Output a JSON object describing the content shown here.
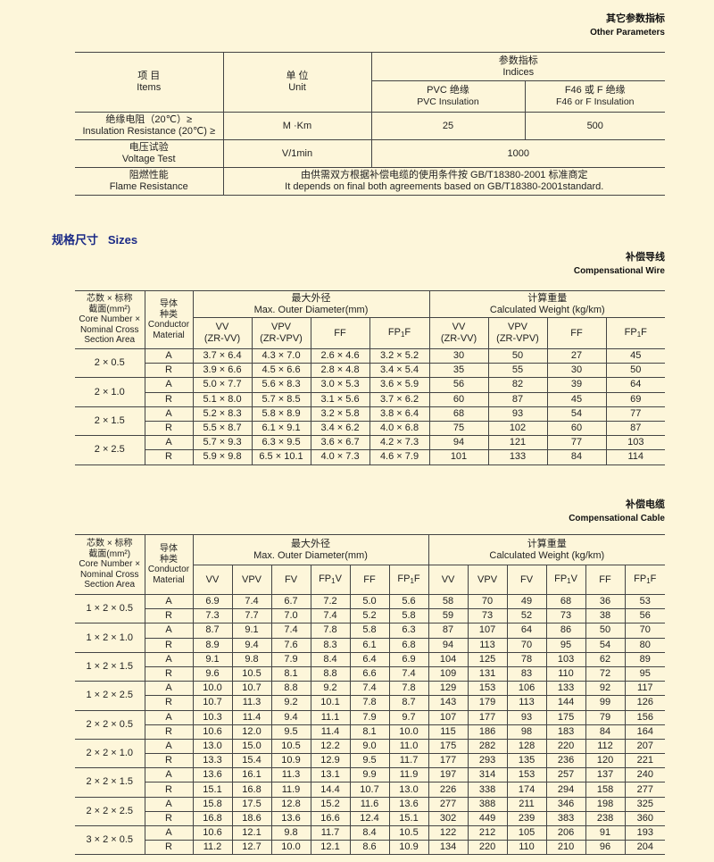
{
  "other": {
    "title": "其它参数指标",
    "subtitle": "Other Parameters",
    "headers": {
      "item": [
        "项 目",
        "Items"
      ],
      "unit": [
        "单 位",
        "Unit"
      ],
      "indices": [
        "参数指标",
        "Indices"
      ],
      "pvc": [
        "PVC 绝缘",
        "PVC Insulation"
      ],
      "f46": [
        "F46 或 F 绝缘",
        "F46 or F Insulation"
      ]
    },
    "rows": [
      {
        "item": [
          "绝缘电阻（20℃）≥",
          "Insulation Resistance (20℃) ≥"
        ],
        "unit": "M ·Km",
        "pvc": "25",
        "f46": "500"
      },
      {
        "item": [
          "电压试验",
          "Voltage Test"
        ],
        "unit": "V/1min",
        "value": "1000"
      },
      {
        "item": [
          "阻燃性能",
          "Flame Resistance"
        ],
        "note": [
          "由供需双方根据补偿电缆的使用条件按 GB/T18380-2001 标准商定",
          "It depends on final both agreements based on GB/T18380-2001standard."
        ]
      }
    ]
  },
  "sizes_heading": {
    "cn": "规格尺寸",
    "en": "Sizes"
  },
  "wire": {
    "title": "补偿导线",
    "subtitle": "Compensational Wire",
    "headers": {
      "spec": [
        "芯数 × 标称",
        "截面(mm²)",
        "Core Number ×",
        "Nominal Cross",
        "Section Area"
      ],
      "material": [
        "导体",
        "种类",
        "Conductor",
        "Material"
      ],
      "diameter": [
        "最大外径",
        "Max. Outer Diameter(mm)"
      ],
      "weight": [
        "计算重量",
        "Calculated Weight  (kg/km)"
      ]
    },
    "columns": [
      [
        "VV",
        "(ZR-VV)"
      ],
      [
        "VPV",
        "(ZR-VPV)"
      ],
      [
        "FF"
      ],
      [
        {
          "main": "FP",
          "sub": "1",
          "end": "F"
        }
      ],
      [
        "VV",
        "(ZR-VV)"
      ],
      [
        "VPV",
        "(ZR-VPV)"
      ],
      [
        "FF"
      ],
      [
        {
          "main": "FP",
          "sub": "1",
          "end": "F"
        }
      ]
    ],
    "rows": [
      {
        "spec": "2 × 0.5",
        "lines": [
          {
            "material": "A",
            "cells": [
              "3.7 × 6.4",
              "4.3 × 7.0",
              "2.6 × 4.6",
              "3.2 × 5.2",
              "30",
              "50",
              "27",
              "45"
            ]
          },
          {
            "material": "R",
            "cells": [
              "3.9 × 6.6",
              "4.5 × 6.6",
              "2.8 × 4.8",
              "3.4 × 5.4",
              "35",
              "55",
              "30",
              "50"
            ]
          }
        ]
      },
      {
        "spec": "2 × 1.0",
        "lines": [
          {
            "material": "A",
            "cells": [
              "5.0 × 7.7",
              "5.6 × 8.3",
              "3.0 × 5.3",
              "3.6 × 5.9",
              "56",
              "82",
              "39",
              "64"
            ]
          },
          {
            "material": "R",
            "cells": [
              "5.1 × 8.0",
              "5.7 × 8.5",
              "3.1 × 5.6",
              "3.7 × 6.2",
              "60",
              "87",
              "45",
              "69"
            ]
          }
        ]
      },
      {
        "spec": "2 × 1.5",
        "lines": [
          {
            "material": "A",
            "cells": [
              "5.2 × 8.3",
              "5.8 × 8.9",
              "3.2 × 5.8",
              "3.8 × 6.4",
              "68",
              "93",
              "54",
              "77"
            ]
          },
          {
            "material": "R",
            "cells": [
              "5.5 × 8.7",
              "6.1 × 9.1",
              "3.4 × 6.2",
              "4.0 × 6.8",
              "75",
              "102",
              "60",
              "87"
            ]
          }
        ]
      },
      {
        "spec": "2 × 2.5",
        "lines": [
          {
            "material": "A",
            "cells": [
              "5.7 × 9.3",
              "6.3 × 9.5",
              "3.6 × 6.7",
              "4.2 × 7.3",
              "94",
              "121",
              "77",
              "103"
            ]
          },
          {
            "material": "R",
            "cells": [
              "5.9 × 9.8",
              "6.5 × 10.1",
              "4.0 × 7.3",
              "4.6 × 7.9",
              "101",
              "133",
              "84",
              "114"
            ]
          }
        ]
      }
    ]
  },
  "cable": {
    "title": "补偿电缆",
    "subtitle": "Compensational Cable",
    "headers": {
      "spec": [
        "芯数 × 标称",
        "截面(mm²)",
        "Core Number ×",
        "Nominal Cross",
        "Section Area"
      ],
      "material": [
        "导体",
        "种类",
        "Conductor",
        "Material"
      ],
      "diameter": [
        "最大外径",
        "Max. Outer Diameter(mm)"
      ],
      "weight": [
        "计算重量",
        "Calculated Weight  (kg/km)"
      ]
    },
    "columns": [
      [
        "VV"
      ],
      [
        "VPV"
      ],
      [
        "FV"
      ],
      [
        {
          "main": "FP",
          "sub": "1",
          "end": "V"
        }
      ],
      [
        "FF"
      ],
      [
        {
          "main": "FP",
          "sub": "1",
          "end": "F"
        }
      ],
      [
        "VV"
      ],
      [
        "VPV"
      ],
      [
        "FV"
      ],
      [
        {
          "main": "FP",
          "sub": "1",
          "end": "V"
        }
      ],
      [
        "FF"
      ],
      [
        {
          "main": "FP",
          "sub": "1",
          "end": "F"
        }
      ]
    ],
    "rows": [
      {
        "spec": "1 × 2 × 0.5",
        "lines": [
          {
            "material": "A",
            "cells": [
              "6.9",
              "7.4",
              "6.7",
              "7.2",
              "5.0",
              "5.6",
              "58",
              "70",
              "49",
              "68",
              "36",
              "53"
            ]
          },
          {
            "material": "R",
            "cells": [
              "7.3",
              "7.7",
              "7.0",
              "7.4",
              "5.2",
              "5.8",
              "59",
              "73",
              "52",
              "73",
              "38",
              "56"
            ]
          }
        ]
      },
      {
        "spec": "1 × 2 × 1.0",
        "lines": [
          {
            "material": "A",
            "cells": [
              "8.7",
              "9.1",
              "7.4",
              "7.8",
              "5.8",
              "6.3",
              "87",
              "107",
              "64",
              "86",
              "50",
              "70"
            ]
          },
          {
            "material": "R",
            "cells": [
              "8.9",
              "9.4",
              "7.6",
              "8.3",
              "6.1",
              "6.8",
              "94",
              "113",
              "70",
              "95",
              "54",
              "80"
            ]
          }
        ]
      },
      {
        "spec": "1 × 2 × 1.5",
        "lines": [
          {
            "material": "A",
            "cells": [
              "9.1",
              "9.8",
              "7.9",
              "8.4",
              "6.4",
              "6.9",
              "104",
              "125",
              "78",
              "103",
              "62",
              "89"
            ]
          },
          {
            "material": "R",
            "cells": [
              "9.6",
              "10.5",
              "8.1",
              "8.8",
              "6.6",
              "7.4",
              "109",
              "131",
              "83",
              "110",
              "72",
              "95"
            ]
          }
        ]
      },
      {
        "spec": "1 × 2 × 2.5",
        "lines": [
          {
            "material": "A",
            "cells": [
              "10.0",
              "10.7",
              "8.8",
              "9.2",
              "7.4",
              "7.8",
              "129",
              "153",
              "106",
              "133",
              "92",
              "117"
            ]
          },
          {
            "material": "R",
            "cells": [
              "10.7",
              "11.3",
              "9.2",
              "10.1",
              "7.8",
              "8.7",
              "143",
              "179",
              "113",
              "144",
              "99",
              "126"
            ]
          }
        ]
      },
      {
        "spec": "2 × 2 × 0.5",
        "lines": [
          {
            "material": "A",
            "cells": [
              "10.3",
              "11.4",
              "9.4",
              "11.1",
              "7.9",
              "9.7",
              "107",
              "177",
              "93",
              "175",
              "79",
              "156"
            ]
          },
          {
            "material": "R",
            "cells": [
              "10.6",
              "12.0",
              "9.5",
              "11.4",
              "8.1",
              "10.0",
              "115",
              "186",
              "98",
              "183",
              "84",
              "164"
            ]
          }
        ]
      },
      {
        "spec": "2 × 2 × 1.0",
        "lines": [
          {
            "material": "A",
            "cells": [
              "13.0",
              "15.0",
              "10.5",
              "12.2",
              "9.0",
              "11.0",
              "175",
              "282",
              "128",
              "220",
              "112",
              "207"
            ]
          },
          {
            "material": "R",
            "cells": [
              "13.3",
              "15.4",
              "10.9",
              "12.9",
              "9.5",
              "11.7",
              "177",
              "293",
              "135",
              "236",
              "120",
              "221"
            ]
          }
        ]
      },
      {
        "spec": "2 × 2 × 1.5",
        "lines": [
          {
            "material": "A",
            "cells": [
              "13.6",
              "16.1",
              "11.3",
              "13.1",
              "9.9",
              "11.9",
              "197",
              "314",
              "153",
              "257",
              "137",
              "240"
            ]
          },
          {
            "material": "R",
            "cells": [
              "15.1",
              "16.8",
              "11.9",
              "14.4",
              "10.7",
              "13.0",
              "226",
              "338",
              "174",
              "294",
              "158",
              "277"
            ]
          }
        ]
      },
      {
        "spec": "2 × 2 × 2.5",
        "lines": [
          {
            "material": "A",
            "cells": [
              "15.8",
              "17.5",
              "12.8",
              "15.2",
              "11.6",
              "13.6",
              "277",
              "388",
              "211",
              "346",
              "198",
              "325"
            ]
          },
          {
            "material": "R",
            "cells": [
              "16.8",
              "18.6",
              "13.6",
              "16.6",
              "12.4",
              "15.1",
              "302",
              "449",
              "239",
              "383",
              "238",
              "360"
            ]
          }
        ]
      },
      {
        "spec": "3 × 2 × 0.5",
        "lines": [
          {
            "material": "A",
            "cells": [
              "10.6",
              "12.1",
              "9.8",
              "11.7",
              "8.4",
              "10.5",
              "122",
              "212",
              "105",
              "206",
              "91",
              "193"
            ]
          },
          {
            "material": "R",
            "cells": [
              "11.2",
              "12.7",
              "10.0",
              "12.1",
              "8.6",
              "10.9",
              "134",
              "220",
              "110",
              "210",
              "96",
              "204"
            ]
          }
        ]
      }
    ]
  }
}
